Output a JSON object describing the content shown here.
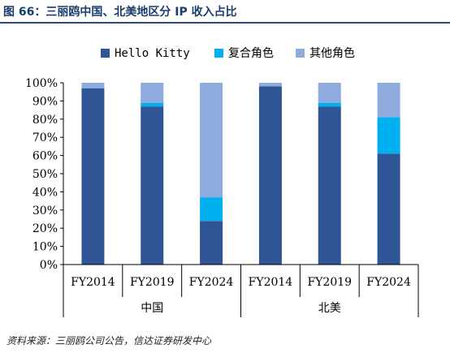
{
  "header": {
    "title": "图 66：三丽鸥中国、北美地区分 IP 收入占比"
  },
  "footer": {
    "source": "资料来源：三丽鸥公司公告，信达证券研发中心"
  },
  "colors": {
    "hello_kitty": "#2f5597",
    "fuhe": "#00b0f0",
    "other": "#8faadc",
    "title": "#1a3d6e"
  },
  "chart_data": {
    "type": "bar",
    "stacked": true,
    "title": "",
    "xlabel": "",
    "ylabel": "",
    "ylim": [
      0,
      100
    ],
    "yticks": [
      "0%",
      "10%",
      "20%",
      "30%",
      "40%",
      "50%",
      "60%",
      "70%",
      "80%",
      "90%",
      "100%"
    ],
    "categories": [
      "FY2014",
      "FY2019",
      "FY2024",
      "FY2014",
      "FY2019",
      "FY2024"
    ],
    "groups": [
      {
        "label": "中国",
        "categories": [
          "FY2014",
          "FY2019",
          "FY2024"
        ]
      },
      {
        "label": "北美",
        "categories": [
          "FY2014",
          "FY2019",
          "FY2024"
        ]
      }
    ],
    "legend_position": "top",
    "grid": false,
    "series": [
      {
        "name": "Hello Kitty",
        "color": "#2f5597",
        "values": [
          97,
          87,
          24,
          98,
          87,
          61
        ]
      },
      {
        "name": "复合角色",
        "color": "#00b0f0",
        "values": [
          0,
          2,
          13,
          0,
          2,
          20
        ]
      },
      {
        "name": "其他角色",
        "color": "#8faadc",
        "values": [
          3,
          11,
          63,
          2,
          11,
          19
        ]
      }
    ]
  }
}
